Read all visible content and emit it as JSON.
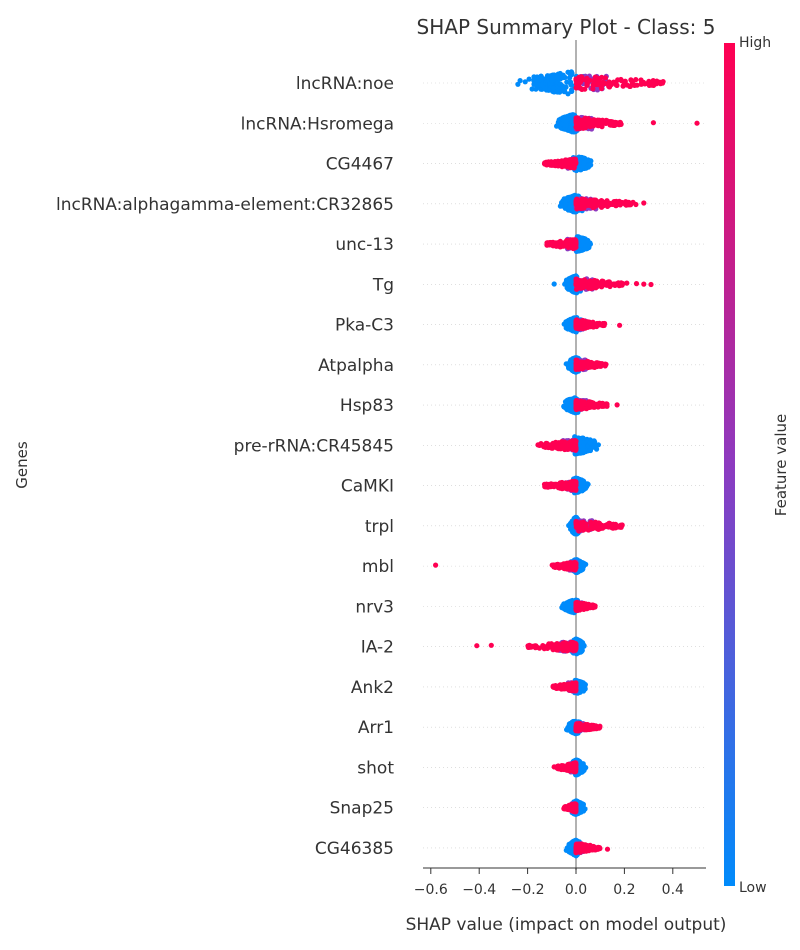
{
  "chart_data": {
    "type": "scatter",
    "subtype": "beeswarm",
    "title": "SHAP Summary Plot - Class: 5",
    "xlabel": "SHAP value (impact on model output)",
    "ylabel": "Genes",
    "xlim": [
      -0.63,
      0.55
    ],
    "xticks": [
      -0.6,
      -0.4,
      -0.2,
      0,
      0.2,
      0.4
    ],
    "xtick_labels": [
      "−0.6",
      "−0.4",
      "−0.2",
      "0.0",
      "0.2",
      "0.4"
    ],
    "colorbar": {
      "label": "Feature value",
      "high_label": "High",
      "low_label": "Low",
      "low_color": "#008bfb",
      "mid_color": "#8d3ac0",
      "high_color": "#ff0052"
    },
    "features": [
      {
        "name": "lncRNA:noe",
        "low_range": [
          -0.24,
          0.03
        ],
        "high_range": [
          0.0,
          0.36
        ],
        "spread": 12,
        "high_outliers": [
          0.3,
          0.33,
          0.36
        ],
        "low_outliers": [
          -0.24,
          -0.21
        ]
      },
      {
        "name": "lncRNA:Hsromega",
        "low_range": [
          -0.08,
          0.02
        ],
        "high_range": [
          0.0,
          0.19
        ],
        "spread": 10,
        "high_outliers": [
          0.32,
          0.5
        ],
        "low_outliers": []
      },
      {
        "name": "CG4467",
        "low_range": [
          -0.02,
          0.07
        ],
        "high_range": [
          -0.13,
          0.0
        ],
        "spread": 8,
        "high_outliers": [
          -0.13
        ],
        "low_outliers": []
      },
      {
        "name": "lncRNA:alphagamma-element:CR32865",
        "low_range": [
          -0.07,
          0.03
        ],
        "high_range": [
          0.0,
          0.25
        ],
        "spread": 9,
        "high_outliers": [
          0.28
        ],
        "low_outliers": []
      },
      {
        "name": "unc-13",
        "low_range": [
          -0.02,
          0.07
        ],
        "high_range": [
          -0.12,
          0.0
        ],
        "spread": 8,
        "high_outliers": [
          -0.12
        ],
        "low_outliers": []
      },
      {
        "name": "Tg",
        "low_range": [
          -0.05,
          0.02
        ],
        "high_range": [
          0.0,
          0.2
        ],
        "spread": 9,
        "high_outliers": [
          0.21,
          0.25,
          0.28,
          0.31
        ],
        "low_outliers": [
          -0.09
        ]
      },
      {
        "name": "Pka-C3",
        "low_range": [
          -0.05,
          0.02
        ],
        "high_range": [
          0.0,
          0.12
        ],
        "spread": 8,
        "high_outliers": [
          0.18
        ],
        "low_outliers": []
      },
      {
        "name": "Atpalpha",
        "low_range": [
          -0.04,
          0.03
        ],
        "high_range": [
          0.0,
          0.13
        ],
        "spread": 8,
        "high_outliers": [],
        "low_outliers": []
      },
      {
        "name": "Hsp83",
        "low_range": [
          -0.06,
          0.02
        ],
        "high_range": [
          0.0,
          0.13
        ],
        "spread": 8,
        "high_outliers": [
          0.17
        ],
        "low_outliers": []
      },
      {
        "name": "pre-rRNA:CR45845",
        "low_range": [
          -0.02,
          0.1
        ],
        "high_range": [
          -0.16,
          0.0
        ],
        "spread": 9,
        "high_outliers": [],
        "low_outliers": []
      },
      {
        "name": "CaMKI",
        "low_range": [
          -0.02,
          0.05
        ],
        "high_range": [
          -0.13,
          0.0
        ],
        "spread": 8,
        "high_outliers": [
          -0.13
        ],
        "low_outliers": []
      },
      {
        "name": "trpl",
        "low_range": [
          -0.03,
          0.02
        ],
        "high_range": [
          0.0,
          0.2
        ],
        "spread": 9,
        "high_outliers": [],
        "low_outliers": []
      },
      {
        "name": "mbl",
        "low_range": [
          -0.02,
          0.04
        ],
        "high_range": [
          -0.1,
          0.0
        ],
        "spread": 7,
        "high_outliers": [
          -0.58
        ],
        "low_outliers": []
      },
      {
        "name": "nrv3",
        "low_range": [
          -0.06,
          0.02
        ],
        "high_range": [
          0.0,
          0.08
        ],
        "spread": 7,
        "high_outliers": [],
        "low_outliers": []
      },
      {
        "name": "IA-2",
        "low_range": [
          -0.02,
          0.04
        ],
        "high_range": [
          -0.2,
          0.0
        ],
        "spread": 8,
        "high_outliers": [
          -0.41,
          -0.35
        ],
        "low_outliers": []
      },
      {
        "name": "Ank2",
        "low_range": [
          -0.02,
          0.05
        ],
        "high_range": [
          -0.1,
          0.0
        ],
        "spread": 7,
        "high_outliers": [],
        "low_outliers": []
      },
      {
        "name": "Arr1",
        "low_range": [
          -0.04,
          0.02
        ],
        "high_range": [
          0.0,
          0.1
        ],
        "spread": 7,
        "high_outliers": [],
        "low_outliers": []
      },
      {
        "name": "shot",
        "low_range": [
          -0.02,
          0.04
        ],
        "high_range": [
          -0.08,
          0.0
        ],
        "spread": 8,
        "high_outliers": [
          -0.09
        ],
        "low_outliers": []
      },
      {
        "name": "Snap25",
        "low_range": [
          -0.02,
          0.04
        ],
        "high_range": [
          -0.05,
          0.0
        ],
        "spread": 7,
        "high_outliers": [],
        "low_outliers": []
      },
      {
        "name": "CG46385",
        "low_range": [
          -0.04,
          0.02
        ],
        "high_range": [
          0.0,
          0.1
        ],
        "spread": 8,
        "high_outliers": [
          0.13
        ],
        "low_outliers": []
      }
    ]
  }
}
